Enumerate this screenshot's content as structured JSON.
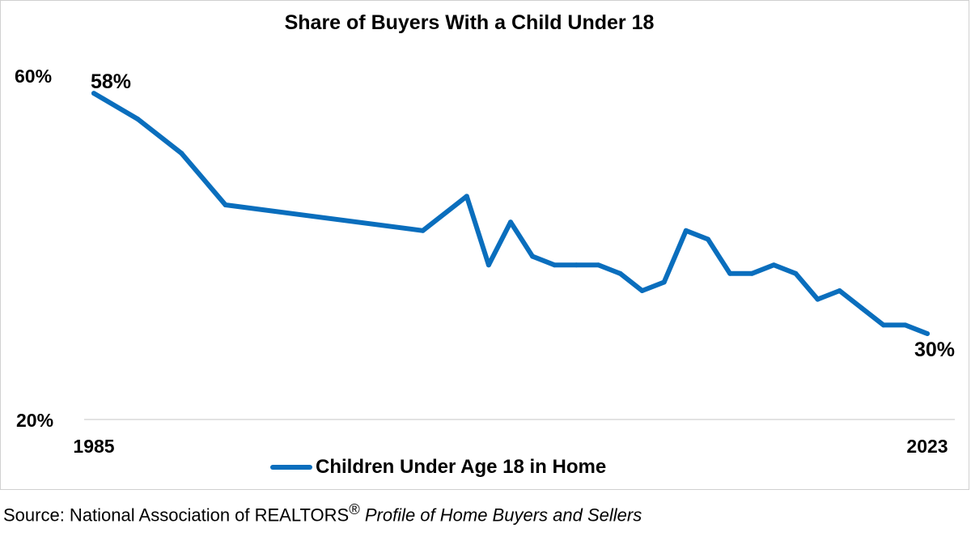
{
  "source": {
    "prefix": "Source: National Association of REALTORS",
    "reg_mark": "®",
    "italic": "Profile of Home Buyers and Sellers"
  },
  "colors": {
    "line": "#0A6EBD",
    "axis": "#d9d9d9"
  },
  "chart_data": {
    "type": "line",
    "title": "Share of Buyers With a Child Under 18",
    "xlabel": "",
    "ylabel": "",
    "x_tick_labels": [
      "1985",
      "2023"
    ],
    "y_tick_labels": [
      "60%",
      "20%"
    ],
    "ylim": [
      20,
      60
    ],
    "grid": false,
    "legend_position": "bottom",
    "series": [
      {
        "name": "Children Under Age 18 in Home",
        "x": [
          1985,
          1987,
          1989,
          1991,
          2000,
          2002,
          2003,
          2004,
          2005,
          2006,
          2007,
          2008,
          2009,
          2010,
          2011,
          2012,
          2013,
          2014,
          2015,
          2016,
          2017,
          2018,
          2019,
          2020,
          2021,
          2022,
          2023
        ],
        "values": [
          58,
          55,
          51,
          45,
          42,
          46,
          38,
          43,
          39,
          38,
          38,
          38,
          37,
          35,
          36,
          42,
          41,
          37,
          37,
          38,
          37,
          34,
          35,
          33,
          31,
          31,
          30
        ]
      }
    ],
    "annotations": [
      {
        "x": 1985,
        "text": "58%"
      },
      {
        "x": 2023,
        "text": "30%"
      }
    ]
  }
}
